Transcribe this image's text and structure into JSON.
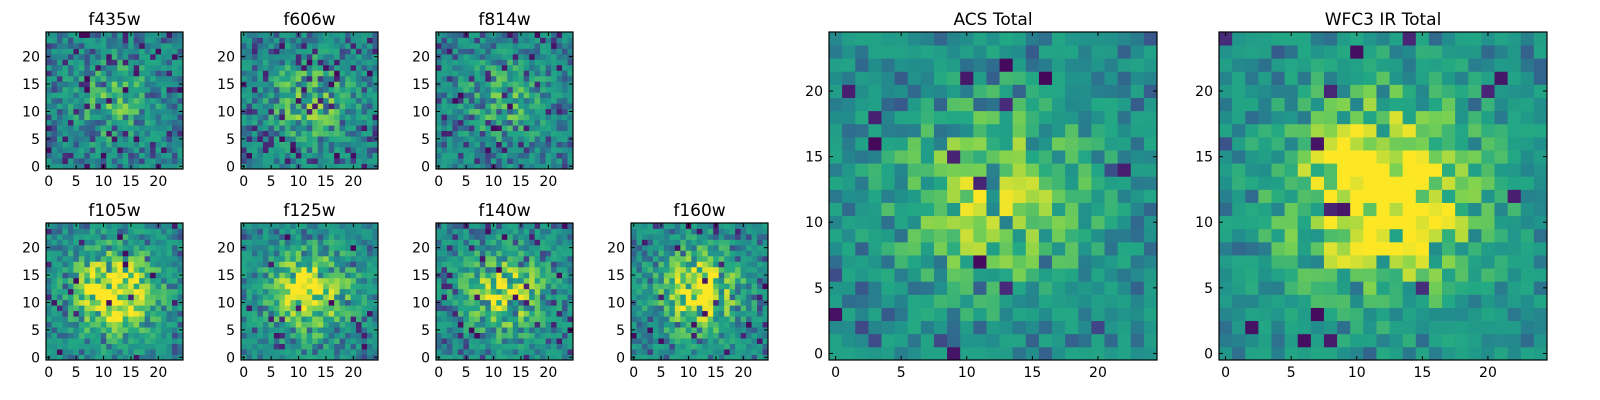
{
  "chart_data": [
    {
      "type": "heatmap",
      "title": "f435w",
      "xlim": [
        0,
        25
      ],
      "ylim": [
        0,
        25
      ],
      "xticks": [
        "0",
        "5",
        "10",
        "15",
        "20"
      ],
      "yticks": [
        "0",
        "5",
        "10",
        "15",
        "20"
      ],
      "grid_size": 25,
      "colormap": "viridis",
      "seed": 11,
      "peak": 0.2,
      "noise": 0.45,
      "hot": 0.05
    },
    {
      "type": "heatmap",
      "title": "f606w",
      "xlim": [
        0,
        25
      ],
      "ylim": [
        0,
        25
      ],
      "xticks": [
        "0",
        "5",
        "10",
        "15",
        "20"
      ],
      "yticks": [
        "0",
        "5",
        "10",
        "15",
        "20"
      ],
      "grid_size": 25,
      "colormap": "viridis",
      "seed": 23,
      "peak": 0.25,
      "noise": 0.45,
      "hot": 0.06
    },
    {
      "type": "heatmap",
      "title": "f814w",
      "xlim": [
        0,
        25
      ],
      "ylim": [
        0,
        25
      ],
      "xticks": [
        "0",
        "5",
        "10",
        "15",
        "20"
      ],
      "yticks": [
        "0",
        "5",
        "10",
        "15",
        "20"
      ],
      "grid_size": 25,
      "colormap": "viridis",
      "seed": 37,
      "peak": 0.2,
      "noise": 0.45,
      "hot": 0.06
    },
    {
      "type": "heatmap",
      "title": "f105w",
      "xlim": [
        0,
        25
      ],
      "ylim": [
        0,
        25
      ],
      "xticks": [
        "0",
        "5",
        "10",
        "15",
        "20"
      ],
      "yticks": [
        "0",
        "5",
        "10",
        "15",
        "20"
      ],
      "grid_size": 25,
      "colormap": "viridis",
      "seed": 41,
      "peak": 0.45,
      "noise": 0.35,
      "hot": 0.03
    },
    {
      "type": "heatmap",
      "title": "f125w",
      "xlim": [
        0,
        25
      ],
      "ylim": [
        0,
        25
      ],
      "xticks": [
        "0",
        "5",
        "10",
        "15",
        "20"
      ],
      "yticks": [
        "0",
        "5",
        "10",
        "15",
        "20"
      ],
      "grid_size": 25,
      "colormap": "viridis",
      "seed": 53,
      "peak": 0.4,
      "noise": 0.38,
      "hot": 0.03
    },
    {
      "type": "heatmap",
      "title": "f140w",
      "xlim": [
        0,
        25
      ],
      "ylim": [
        0,
        25
      ],
      "xticks": [
        "0",
        "5",
        "10",
        "15",
        "20"
      ],
      "yticks": [
        "0",
        "5",
        "10",
        "15",
        "20"
      ],
      "grid_size": 25,
      "colormap": "viridis",
      "seed": 67,
      "peak": 0.35,
      "noise": 0.42,
      "hot": 0.05
    },
    {
      "type": "heatmap",
      "title": "f160w",
      "xlim": [
        0,
        25
      ],
      "ylim": [
        0,
        25
      ],
      "xticks": [
        "0",
        "5",
        "10",
        "15",
        "20"
      ],
      "yticks": [
        "0",
        "5",
        "10",
        "15",
        "20"
      ],
      "grid_size": 25,
      "colormap": "viridis",
      "seed": 79,
      "peak": 0.4,
      "noise": 0.4,
      "hot": 0.04
    },
    {
      "type": "heatmap",
      "title": "ACS Total",
      "xlim": [
        0,
        25
      ],
      "ylim": [
        0,
        25
      ],
      "xticks": [
        "0",
        "5",
        "10",
        "15",
        "20"
      ],
      "yticks": [
        "0",
        "5",
        "10",
        "15",
        "20"
      ],
      "grid_size": 25,
      "colormap": "viridis",
      "seed": 97,
      "peak": 0.3,
      "noise": 0.32,
      "hot": 0.03
    },
    {
      "type": "heatmap",
      "title": "WFC3 IR Total",
      "xlim": [
        0,
        25
      ],
      "ylim": [
        0,
        25
      ],
      "xticks": [
        "0",
        "5",
        "10",
        "15",
        "20"
      ],
      "yticks": [
        "0",
        "5",
        "10",
        "15",
        "20"
      ],
      "grid_size": 25,
      "colormap": "viridis",
      "seed": 113,
      "peak": 0.45,
      "noise": 0.28,
      "hot": 0.025
    }
  ]
}
